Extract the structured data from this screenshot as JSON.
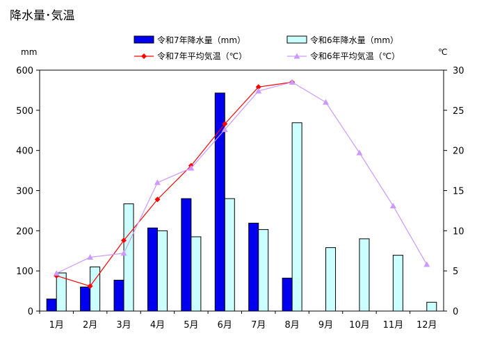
{
  "chart_data": {
    "type": "bar",
    "title": "降水量･気温",
    "left_unit": "mm",
    "right_unit": "℃",
    "categories": [
      "1月",
      "2月",
      "3月",
      "4月",
      "5月",
      "6月",
      "7月",
      "8月",
      "9月",
      "10月",
      "11月",
      "12月"
    ],
    "y_left": {
      "range": [
        0,
        600
      ],
      "ticks": [
        "0",
        "100",
        "200",
        "300",
        "400",
        "500",
        "600"
      ]
    },
    "y_right": {
      "range": [
        0,
        30
      ],
      "ticks": [
        "0",
        "5",
        "10",
        "15",
        "20",
        "25",
        "30"
      ]
    },
    "series": [
      {
        "name": "令和7年降水量（mm）",
        "type": "bar",
        "axis": "left",
        "color": "#0000ee",
        "values": [
          30,
          60,
          77,
          207,
          280,
          543,
          219,
          82,
          null,
          null,
          null,
          null
        ]
      },
      {
        "name": "令和6年降水量（mm）",
        "type": "bar",
        "axis": "left",
        "color": "#ccffff",
        "values": [
          95,
          110,
          267,
          200,
          185,
          280,
          203,
          469,
          158,
          180,
          139,
          22
        ]
      },
      {
        "name": "令和7年平均気温（℃）",
        "type": "line",
        "axis": "right",
        "color": "#ff0000",
        "marker": "diamond",
        "values": [
          4.4,
          3.1,
          8.8,
          13.9,
          18.1,
          23.3,
          27.9,
          28.5,
          null,
          null,
          null,
          null
        ]
      },
      {
        "name": "令和6年平均気温（℃）",
        "type": "line",
        "axis": "right",
        "color": "#cc99ff",
        "marker": "triangle",
        "values": [
          4.7,
          6.7,
          7.2,
          16.0,
          17.8,
          22.6,
          27.4,
          28.5,
          26.0,
          19.7,
          13.1,
          5.8
        ]
      }
    ],
    "grid": false,
    "legend_position": "top"
  }
}
